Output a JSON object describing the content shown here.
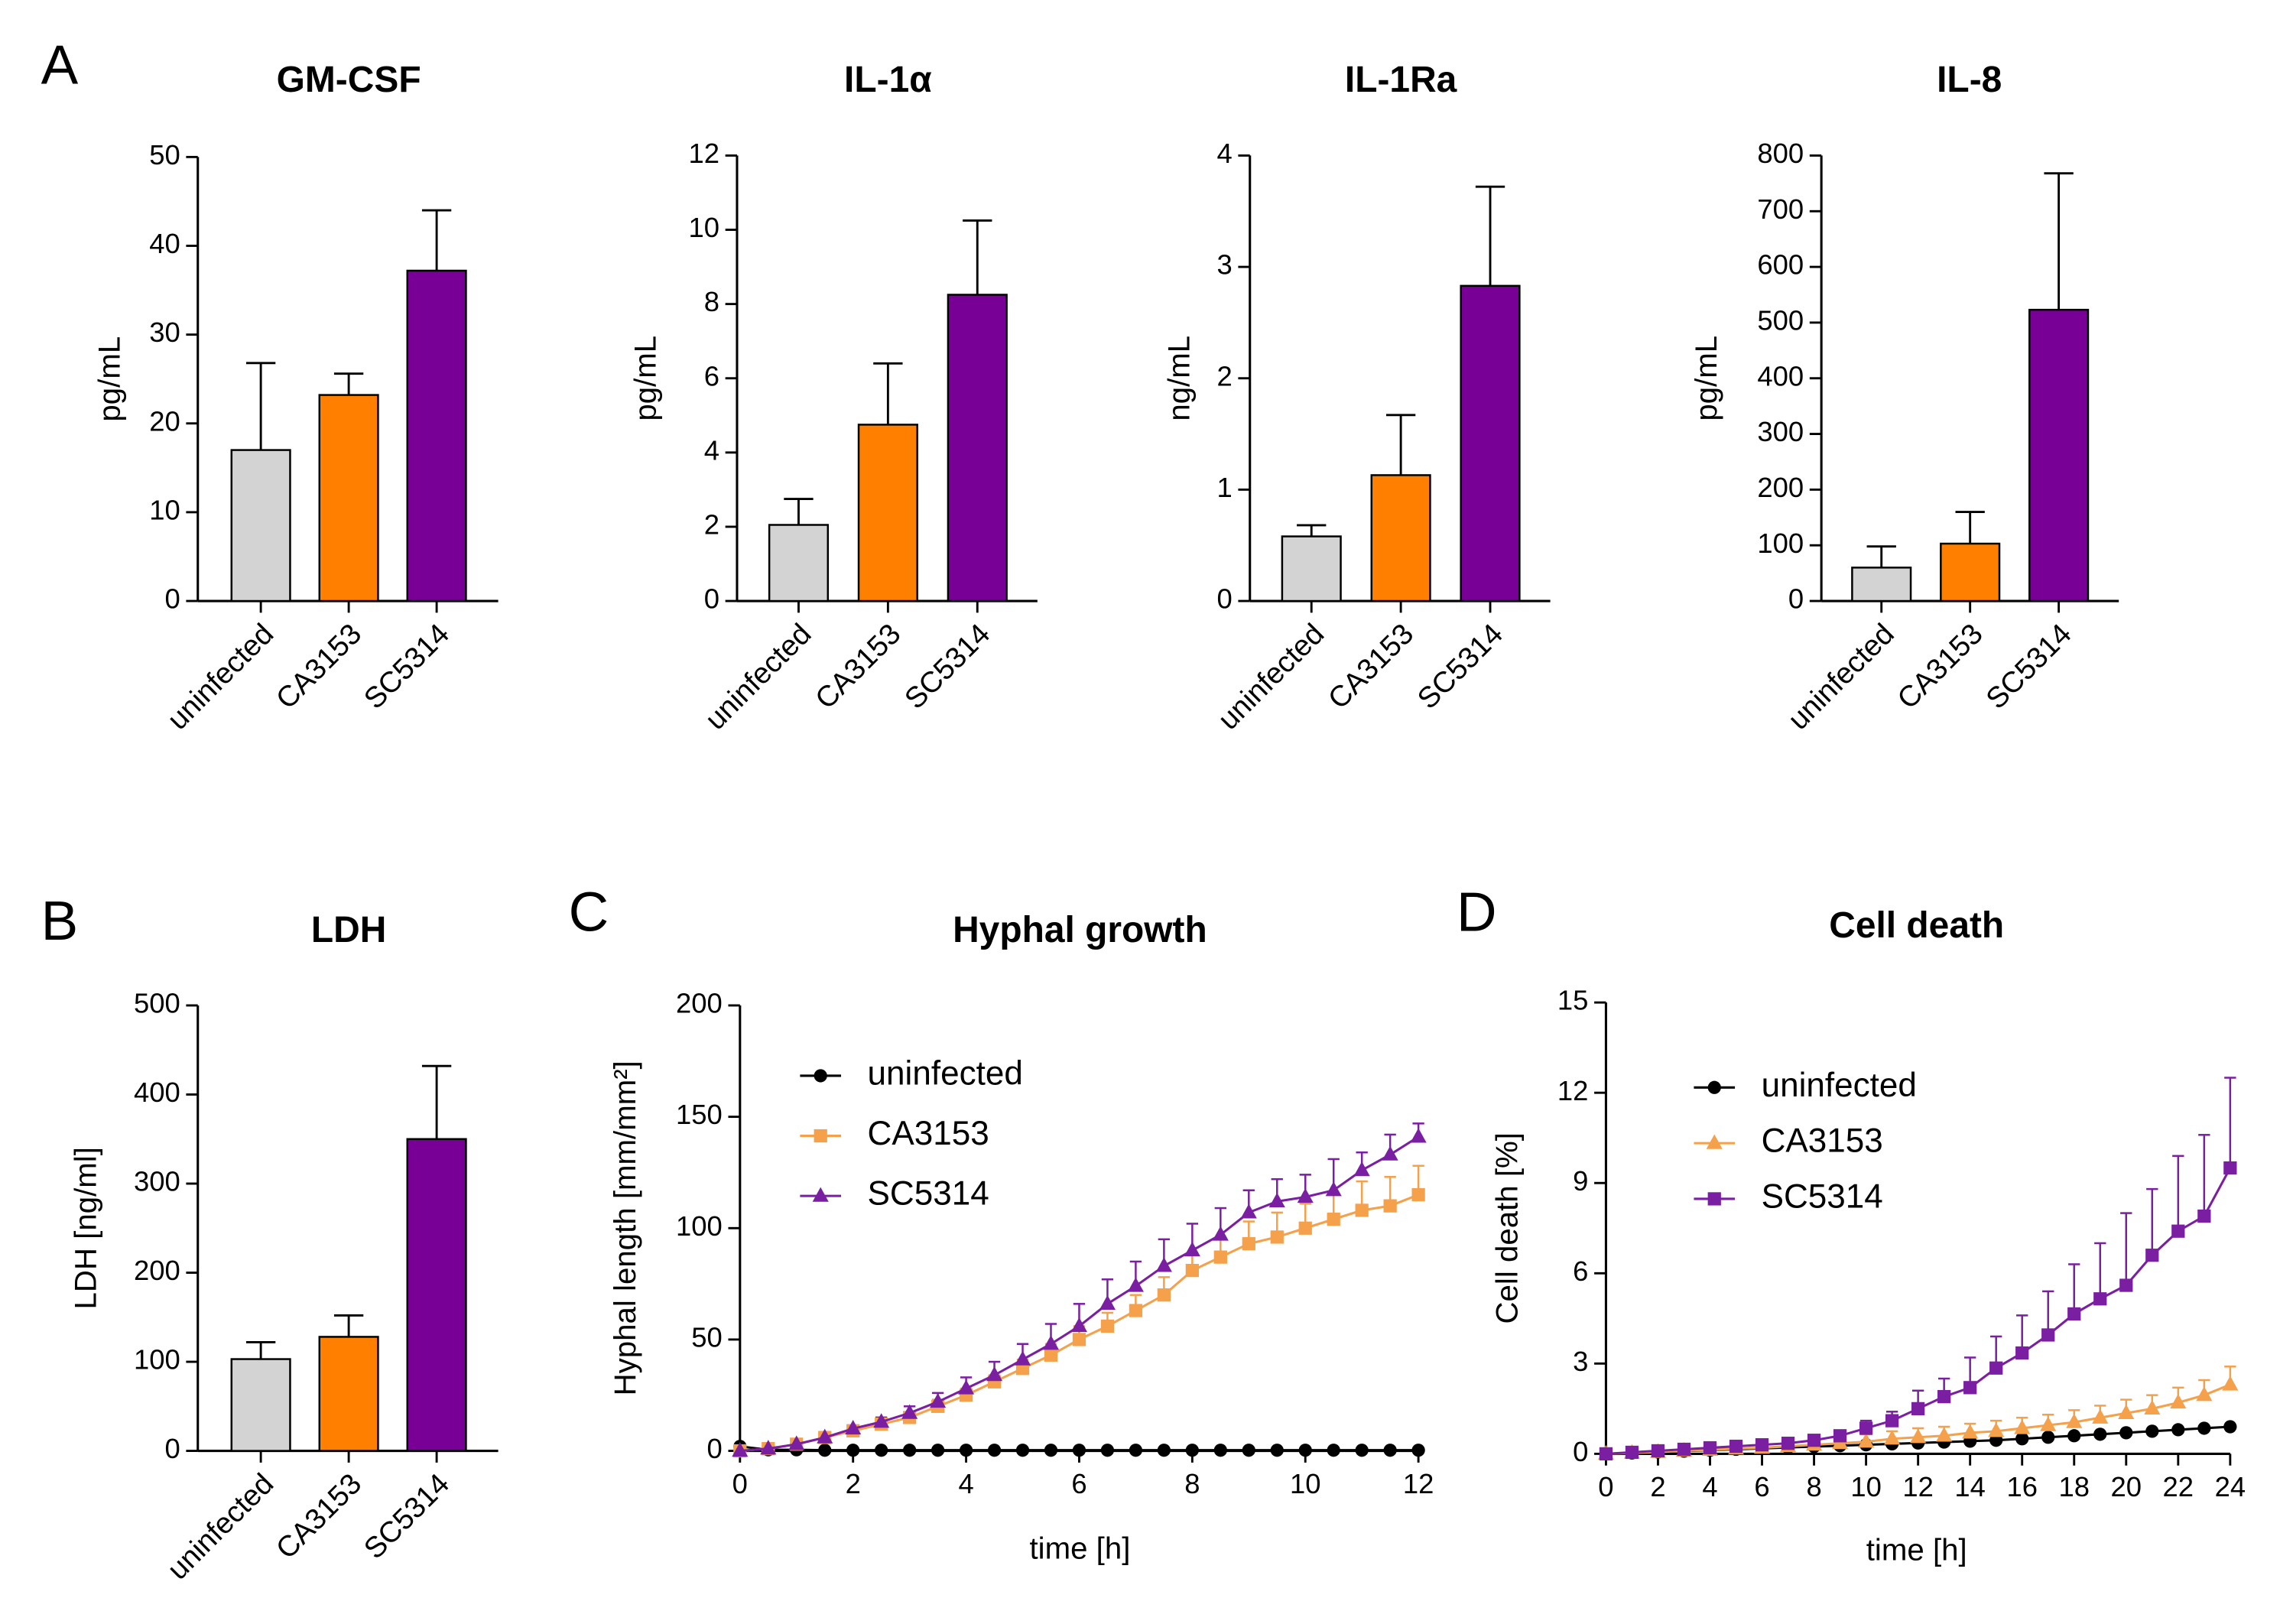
{
  "panel_labels": [
    "A",
    "B",
    "C",
    "D"
  ],
  "chart_data": [
    {
      "type": "bar",
      "title": "GM-CSF",
      "y_label": "pg/mL",
      "categories": [
        "uninfected",
        "CA3153",
        "SC5314"
      ],
      "colors": [
        "#d3d3d3",
        "#ff8000",
        "#780096"
      ],
      "values": [
        17,
        23.2,
        37.2
      ],
      "errors": [
        9.8,
        2.4,
        6.8
      ],
      "ylim": [
        0,
        50
      ],
      "yticks": [
        0,
        10,
        20,
        30,
        40,
        50
      ]
    },
    {
      "type": "bar",
      "title": "IL-1α",
      "y_label": "pg/mL",
      "categories": [
        "uninfected",
        "CA3153",
        "SC5314"
      ],
      "colors": [
        "#d3d3d3",
        "#ff8000",
        "#780096"
      ],
      "values": [
        2.05,
        4.75,
        8.25
      ],
      "errors": [
        0.7,
        1.65,
        2.0
      ],
      "ylim": [
        0,
        12
      ],
      "yticks": [
        0,
        2,
        4,
        6,
        8,
        10,
        12
      ]
    },
    {
      "type": "bar",
      "title": "IL-1Ra",
      "y_label": "ng/mL",
      "categories": [
        "uninfected",
        "CA3153",
        "SC5314"
      ],
      "colors": [
        "#d3d3d3",
        "#ff8000",
        "#780096"
      ],
      "values": [
        0.58,
        1.13,
        2.83
      ],
      "errors": [
        0.1,
        0.54,
        0.89
      ],
      "ylim": [
        0,
        4
      ],
      "yticks": [
        0,
        1,
        2,
        3,
        4
      ]
    },
    {
      "type": "bar",
      "title": "IL-8",
      "y_label": "pg/mL",
      "categories": [
        "uninfected",
        "CA3153",
        "SC5314"
      ],
      "colors": [
        "#d3d3d3",
        "#ff8000",
        "#780096"
      ],
      "values": [
        60,
        103,
        523
      ],
      "errors": [
        38,
        57,
        245
      ],
      "ylim": [
        0,
        800
      ],
      "yticks": [
        0,
        100,
        200,
        300,
        400,
        500,
        600,
        700,
        800
      ]
    },
    {
      "type": "bar",
      "title": "LDH",
      "y_label": "LDH [ng/ml]",
      "categories": [
        "uninfected",
        "CA3153",
        "SC5314"
      ],
      "colors": [
        "#d3d3d3",
        "#ff8000",
        "#780096"
      ],
      "values": [
        103,
        128,
        350
      ],
      "errors": [
        19,
        24,
        82
      ],
      "ylim": [
        0,
        500
      ],
      "yticks": [
        0,
        100,
        200,
        300,
        400,
        500
      ]
    },
    {
      "type": "line",
      "title": "Hyphal growth",
      "x_label": "time [h]",
      "y_label": "Hyphal length [mm/mm²]",
      "x": [
        0,
        0.5,
        1,
        1.5,
        2,
        2.5,
        3,
        3.5,
        4,
        4.5,
        5,
        5.5,
        6,
        6.5,
        7,
        7.5,
        8,
        8.5,
        9,
        9.5,
        10,
        10.5,
        11,
        11.5,
        12
      ],
      "xlim": [
        0,
        12
      ],
      "xticks": [
        0,
        2,
        4,
        6,
        8,
        10,
        12
      ],
      "ylim": [
        0,
        200
      ],
      "yticks": [
        0,
        50,
        100,
        150,
        200
      ],
      "series": [
        {
          "name": "uninfected",
          "color": "#000000",
          "marker": "circle",
          "values": [
            2,
            0.5,
            0.5,
            0.3,
            0.3,
            0.3,
            0.3,
            0.3,
            0.3,
            0.3,
            0.3,
            0.3,
            0.3,
            0.3,
            0.3,
            0.3,
            0.3,
            0.3,
            0.3,
            0.3,
            0.3,
            0.3,
            0.3,
            0.3,
            0.3
          ],
          "errors": [
            0,
            0,
            0,
            0,
            0,
            0,
            0,
            0,
            0,
            0,
            0,
            0,
            0,
            0,
            0,
            0,
            0,
            0,
            0,
            0,
            0,
            0,
            0,
            0,
            0
          ]
        },
        {
          "name": "CA3153",
          "color": "#f5a04a",
          "marker": "square",
          "values": [
            0,
            1,
            3,
            6,
            9,
            12,
            15,
            20,
            25,
            31,
            37,
            43,
            50,
            56,
            63,
            70,
            81,
            87,
            93,
            96,
            100,
            104,
            108,
            110,
            115
          ],
          "errors": [
            0.5,
            0.5,
            1,
            1,
            1.5,
            2,
            2,
            3,
            3,
            3,
            4,
            5,
            6,
            6,
            7,
            8,
            8,
            9,
            10,
            11,
            11,
            12,
            13,
            13,
            13
          ]
        },
        {
          "name": "SC5314",
          "color": "#7a1fa2",
          "marker": "triangle",
          "values": [
            0,
            1,
            3,
            6,
            10,
            13,
            17,
            22,
            28,
            34,
            41,
            48,
            56,
            66,
            74,
            83,
            90,
            97,
            107,
            112,
            114,
            117,
            126,
            133,
            141
          ],
          "errors": [
            0.5,
            0.5,
            1,
            1,
            1.5,
            2,
            3,
            4,
            5,
            6,
            7,
            9,
            10,
            11,
            11,
            12,
            12,
            12,
            10,
            10,
            10,
            14,
            8,
            9,
            6
          ]
        }
      ]
    },
    {
      "type": "line",
      "title": "Cell death",
      "x_label": "time [h]",
      "y_label": "Cell death [%]",
      "x": [
        0,
        1,
        2,
        3,
        4,
        5,
        6,
        7,
        8,
        9,
        10,
        11,
        12,
        13,
        14,
        15,
        16,
        17,
        18,
        19,
        20,
        21,
        22,
        23,
        24
      ],
      "xlim": [
        0,
        24
      ],
      "xticks": [
        0,
        2,
        4,
        6,
        8,
        10,
        12,
        14,
        16,
        18,
        20,
        22,
        24
      ],
      "ylim": [
        0,
        15
      ],
      "yticks": [
        0,
        3,
        6,
        9,
        12,
        15
      ],
      "series": [
        {
          "name": "uninfected",
          "color": "#000000",
          "marker": "circle",
          "values": [
            0,
            0.03,
            0.06,
            0.09,
            0.12,
            0.15,
            0.18,
            0.21,
            0.24,
            0.27,
            0.3,
            0.33,
            0.36,
            0.39,
            0.42,
            0.45,
            0.5,
            0.55,
            0.6,
            0.65,
            0.7,
            0.75,
            0.8,
            0.85,
            0.9
          ],
          "errors": [
            0,
            0,
            0,
            0,
            0,
            0,
            0,
            0,
            0,
            0,
            0,
            0,
            0,
            0,
            0,
            0,
            0,
            0,
            0,
            0,
            0,
            0,
            0,
            0,
            0
          ]
        },
        {
          "name": "CA3153",
          "color": "#f5a04a",
          "marker": "triangle",
          "values": [
            0,
            0.03,
            0.06,
            0.1,
            0.13,
            0.17,
            0.2,
            0.25,
            0.3,
            0.35,
            0.4,
            0.5,
            0.55,
            0.6,
            0.7,
            0.75,
            0.85,
            0.95,
            1.05,
            1.2,
            1.35,
            1.5,
            1.7,
            1.95,
            2.3
          ],
          "errors": [
            0.05,
            0.05,
            0.05,
            0.1,
            0.1,
            0.1,
            0.15,
            0.15,
            0.2,
            0.2,
            0.25,
            0.25,
            0.3,
            0.3,
            0.3,
            0.35,
            0.35,
            0.35,
            0.4,
            0.4,
            0.45,
            0.45,
            0.5,
            0.5,
            0.6
          ]
        },
        {
          "name": "SC5314",
          "color": "#7a1fa2",
          "marker": "square",
          "values": [
            0,
            0.05,
            0.1,
            0.15,
            0.2,
            0.25,
            0.3,
            0.35,
            0.45,
            0.6,
            0.85,
            1.1,
            1.5,
            1.9,
            2.2,
            2.85,
            3.35,
            3.95,
            4.65,
            5.15,
            5.6,
            6.6,
            7.4,
            7.9,
            9.5
          ],
          "errors": [
            0.05,
            0.05,
            0.1,
            0.1,
            0.1,
            0.1,
            0.1,
            0.1,
            0.1,
            0.15,
            0.25,
            0.3,
            0.6,
            0.6,
            1,
            1.05,
            1.25,
            1.45,
            1.65,
            1.85,
            2.4,
            2.2,
            2.5,
            2.7,
            3
          ]
        }
      ]
    }
  ]
}
